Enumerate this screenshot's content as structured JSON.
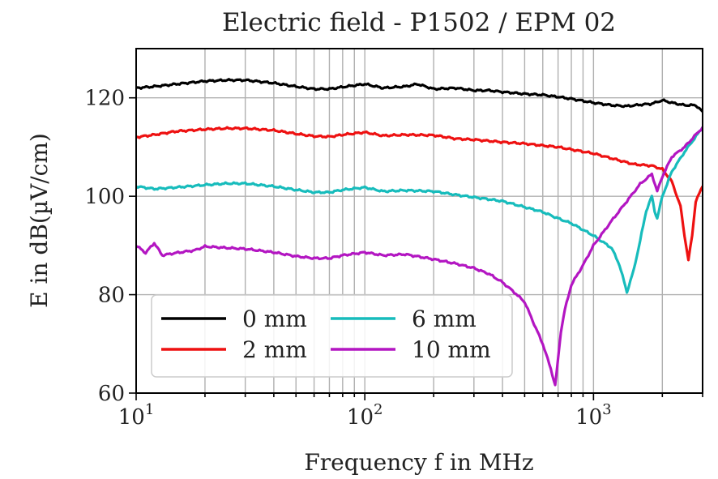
{
  "chart_data": {
    "type": "line",
    "title": "Electric field - P1502 / EPM 02",
    "xlabel": "Frequency f in MHz",
    "ylabel": "E in dB(µV/cm)",
    "xscale": "log",
    "xlim": [
      10,
      3000
    ],
    "ylim": [
      60,
      130
    ],
    "y_ticks": [
      60,
      80,
      100,
      120
    ],
    "y_tick_labels": [
      "60",
      "80",
      "100",
      "120"
    ],
    "x_major_ticks": [
      10,
      100,
      1000
    ],
    "x_tick_labels": [
      {
        "base": "10",
        "exp": "1"
      },
      {
        "base": "10",
        "exp": "2"
      },
      {
        "base": "10",
        "exp": "3"
      }
    ],
    "grid": true,
    "legend_position": "lower-left",
    "legend_columns": 2,
    "series": [
      {
        "name": "0 mm",
        "color": "#000000",
        "x": [
          10,
          12,
          15,
          20,
          25,
          30,
          40,
          50,
          60,
          70,
          80,
          100,
          120,
          150,
          170,
          200,
          250,
          300,
          350,
          400,
          500,
          600,
          700,
          800,
          1000,
          1200,
          1400,
          1600,
          1800,
          2000,
          2200,
          2500,
          2800,
          3000
        ],
        "y": [
          122,
          122.3,
          122.8,
          123.4,
          123.6,
          123.6,
          123,
          122.3,
          121.8,
          121.8,
          122.2,
          122.8,
          122,
          122.3,
          122.8,
          121.8,
          122,
          121.5,
          121.5,
          121.2,
          120.8,
          120.6,
          120.2,
          119.8,
          119,
          118.5,
          118.3,
          118.6,
          118.8,
          119.5,
          119,
          118.5,
          118.5,
          117.2
        ]
      },
      {
        "name": "2 mm",
        "color": "#ee1111",
        "x": [
          10,
          12,
          15,
          20,
          25,
          30,
          40,
          50,
          60,
          70,
          80,
          100,
          120,
          150,
          200,
          250,
          300,
          400,
          500,
          600,
          700,
          800,
          1000,
          1200,
          1500,
          1800,
          2000,
          2200,
          2400,
          2500,
          2600,
          2700,
          2800,
          3000
        ],
        "y": [
          112,
          112.5,
          113.2,
          113.6,
          113.8,
          113.8,
          113.4,
          112.7,
          112.2,
          112.1,
          112.5,
          113,
          112.3,
          112.5,
          112.4,
          111.7,
          111.5,
          111,
          110.7,
          110.3,
          110,
          109.5,
          108.7,
          107.7,
          106.5,
          106.2,
          105.5,
          103,
          98,
          92,
          87,
          92,
          99,
          102
        ]
      },
      {
        "name": "6 mm",
        "color": "#17bcbc",
        "x": [
          10,
          12,
          15,
          20,
          25,
          30,
          40,
          50,
          60,
          70,
          80,
          100,
          120,
          150,
          200,
          250,
          300,
          400,
          500,
          600,
          700,
          800,
          1000,
          1200,
          1300,
          1400,
          1500,
          1600,
          1700,
          1800,
          1850,
          1900,
          2000,
          2200,
          2500,
          3000
        ],
        "y": [
          102,
          101.5,
          101.8,
          102.3,
          102.6,
          102.6,
          102,
          101.3,
          100.8,
          100.8,
          101.3,
          101.8,
          101,
          101.2,
          101,
          100.3,
          99.8,
          99,
          97.8,
          96.8,
          95.5,
          94.5,
          92,
          89.5,
          86,
          80.5,
          85,
          91,
          97,
          100,
          97,
          95.5,
          100,
          105,
          109,
          114
        ]
      },
      {
        "name": "10 mm",
        "color": "#b316c2",
        "x": [
          10,
          11,
          12,
          13,
          15,
          18,
          20,
          25,
          30,
          40,
          50,
          60,
          70,
          80,
          100,
          120,
          150,
          200,
          250,
          300,
          350,
          400,
          450,
          500,
          550,
          600,
          650,
          680,
          700,
          720,
          750,
          800,
          900,
          1000,
          1200,
          1400,
          1600,
          1800,
          1900,
          2000,
          2200,
          2500,
          3000
        ],
        "y": [
          90,
          88.5,
          90.5,
          88,
          88.5,
          89,
          89.8,
          89.5,
          89.3,
          88.6,
          87.8,
          87.4,
          87.4,
          88,
          88.6,
          88,
          88.2,
          87.2,
          86.3,
          85.4,
          84.2,
          82.5,
          80.5,
          78.5,
          74,
          70,
          65,
          61.5,
          67,
          72.5,
          77,
          82,
          86,
          90,
          95,
          99,
          102.5,
          104.5,
          101,
          104,
          108,
          110,
          114
        ]
      }
    ]
  }
}
